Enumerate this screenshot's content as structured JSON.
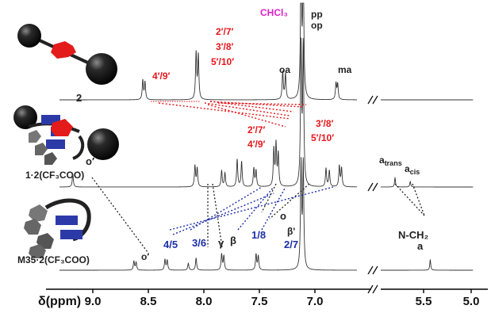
{
  "chart_data": {
    "type": "line",
    "x_axis": {
      "label": "δ(ppm)",
      "ticks": [
        9.0,
        8.5,
        8.0,
        7.5,
        7.0,
        5.5,
        5.0
      ],
      "ticks_display": [
        "9.0",
        "8.5",
        "8.0",
        "7.5",
        "7.0",
        "5.5",
        "5.0"
      ],
      "reversed": true,
      "axis_break_between": [
        6.6,
        5.95
      ]
    },
    "molecules": [
      {
        "label": "2"
      },
      {
        "label": "1·2(CF₃COO)"
      },
      {
        "label": "M35·2(CF₃COO)"
      }
    ],
    "series": [
      {
        "name": "2",
        "peaks": [
          {
            "ppm": 8.55,
            "height": 0.42
          },
          {
            "ppm": 8.53,
            "height": 0.38
          },
          {
            "ppm": 8.07,
            "height": 1.0
          },
          {
            "ppm": 8.05,
            "height": 0.95
          },
          {
            "ppm": 7.29,
            "height": 0.6
          },
          {
            "ppm": 7.265,
            "height": 0.55
          },
          {
            "ppm": 7.125,
            "height": 3.0
          },
          {
            "ppm": 7.105,
            "height": 3.0
          },
          {
            "ppm": 6.81,
            "height": 0.35
          },
          {
            "ppm": 6.795,
            "height": 0.33
          }
        ]
      },
      {
        "name": "1·2(CF₃COO)",
        "peaks": [
          {
            "ppm": 9.18,
            "height": 0.28
          },
          {
            "ppm": 8.08,
            "height": 0.45
          },
          {
            "ppm": 8.06,
            "height": 0.4
          },
          {
            "ppm": 7.84,
            "height": 0.35
          },
          {
            "ppm": 7.81,
            "height": 0.3
          },
          {
            "ppm": 7.7,
            "height": 0.6
          },
          {
            "ppm": 7.66,
            "height": 0.55
          },
          {
            "ppm": 7.55,
            "height": 0.4
          },
          {
            "ppm": 7.53,
            "height": 0.35
          },
          {
            "ppm": 7.37,
            "height": 0.8
          },
          {
            "ppm": 7.35,
            "height": 0.9
          },
          {
            "ppm": 7.33,
            "height": 0.7
          },
          {
            "ppm": 7.125,
            "height": 3.0
          },
          {
            "ppm": 7.105,
            "height": 3.0
          },
          {
            "ppm": 6.9,
            "height": 0.4
          },
          {
            "ppm": 6.87,
            "height": 0.35
          },
          {
            "ppm": 6.78,
            "height": 0.45
          },
          {
            "ppm": 6.76,
            "height": 0.4
          },
          {
            "ppm": 5.8,
            "height": 0.2
          },
          {
            "ppm": 5.64,
            "height": 0.12
          }
        ]
      },
      {
        "name": "M35·2(CF₃COO)",
        "peaks": [
          {
            "ppm": 8.63,
            "height": 0.25
          },
          {
            "ppm": 8.61,
            "height": 0.22
          },
          {
            "ppm": 8.35,
            "height": 0.3
          },
          {
            "ppm": 8.33,
            "height": 0.28
          },
          {
            "ppm": 8.14,
            "height": 0.2
          },
          {
            "ppm": 8.07,
            "height": 0.35
          },
          {
            "ppm": 7.84,
            "height": 0.45
          },
          {
            "ppm": 7.82,
            "height": 0.4
          },
          {
            "ppm": 7.53,
            "height": 0.45
          },
          {
            "ppm": 7.51,
            "height": 0.4
          },
          {
            "ppm": 7.125,
            "height": 3.0
          },
          {
            "ppm": 7.105,
            "height": 3.0
          },
          {
            "ppm": 5.43,
            "height": 0.3
          }
        ]
      }
    ]
  },
  "labels": {
    "chcl3": "CHCl₃",
    "pp": "pp",
    "op": "op",
    "oa": "oa",
    "ma": "ma",
    "top_red_2": "2′/7′",
    "top_red_3": "3′/8′",
    "top_red_5": "5′/10′",
    "top_red_4": "4′/9′",
    "mid_red_27": "2′/7′",
    "mid_red_49": "4′/9′",
    "mid_red_38": "3′/8′",
    "mid_red_510": "5′/10′",
    "o_prime_mid": "o′",
    "a_trans": "atrans",
    "a_cis": "acis",
    "o_prime_bot": "o′",
    "b45": "4/5",
    "b36": "3/6",
    "gamma": "γ",
    "beta": "β",
    "b18": "1/8",
    "o_bot": "o",
    "beta_prime": "β'",
    "b27": "2/7",
    "nch2": "N-CH₂",
    "a_bot": "a"
  },
  "colors": {
    "red": "#e8151b",
    "blue": "#1c2ea6",
    "magenta": "#e020c8",
    "black": "#111111"
  }
}
